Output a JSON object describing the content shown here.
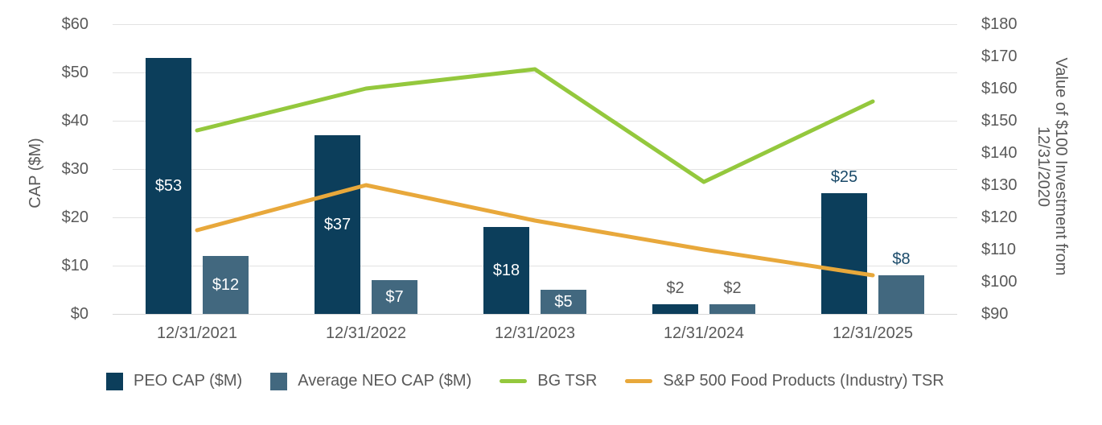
{
  "chart_data": {
    "type": "combo-bar-line",
    "title": "",
    "categories": [
      "12/31/2021",
      "12/31/2022",
      "12/31/2023",
      "12/31/2024",
      "12/31/2025"
    ],
    "bar_series": [
      {
        "name": "PEO CAP ($M)",
        "color": "#0c3e5b",
        "axis": "left",
        "values": [
          53,
          37,
          18,
          2,
          25
        ],
        "labels": [
          {
            "text": "$53",
            "placement": "inside",
            "color": "#ffffff"
          },
          {
            "text": "$37",
            "placement": "inside",
            "color": "#ffffff"
          },
          {
            "text": "$18",
            "placement": "inside",
            "color": "#ffffff"
          },
          {
            "text": "$2",
            "placement": "outside",
            "color": "#595959"
          },
          {
            "text": "$25",
            "placement": "outside",
            "color": "#1a4a69"
          }
        ]
      },
      {
        "name": "Average NEO CAP ($M)",
        "color": "#42687f",
        "axis": "left",
        "values": [
          12,
          7,
          5,
          2,
          8
        ],
        "labels": [
          {
            "text": "$12",
            "placement": "inside",
            "color": "#ffffff"
          },
          {
            "text": "$7",
            "placement": "inside",
            "color": "#ffffff"
          },
          {
            "text": "$5",
            "placement": "inside",
            "color": "#ffffff"
          },
          {
            "text": "$2",
            "placement": "outside",
            "color": "#595959"
          },
          {
            "text": "$8",
            "placement": "outside",
            "color": "#1a4a69"
          }
        ]
      }
    ],
    "line_series": [
      {
        "name": "BG TSR",
        "color": "#94c83d",
        "axis": "right",
        "values": [
          147,
          160,
          166,
          131,
          156
        ]
      },
      {
        "name": "S&P 500 Food Products (Industry) TSR",
        "color": "#e8a83b",
        "axis": "right",
        "values": [
          116,
          130,
          119,
          110,
          102
        ]
      }
    ],
    "left_axis": {
      "title": "CAP ($M)",
      "range": [
        0,
        60
      ],
      "tick_step": 10,
      "tick_labels": [
        "$0",
        "$10",
        "$20",
        "$30",
        "$40",
        "$50",
        "$60"
      ]
    },
    "right_axis": {
      "title": "Value of $100 Investment from 12/31/2020",
      "range": [
        90,
        180
      ],
      "tick_step": 10,
      "tick_labels": [
        "$90",
        "$100",
        "$110",
        "$120",
        "$130",
        "$140",
        "$150",
        "$160",
        "$170",
        "$180"
      ]
    },
    "legend": [
      {
        "label": "PEO CAP ($M)",
        "swatch": "square",
        "color": "#0c3e5b"
      },
      {
        "label": "Average NEO CAP ($M)",
        "swatch": "square",
        "color": "#42687f"
      },
      {
        "label": "BG TSR",
        "swatch": "line",
        "color": "#94c83d"
      },
      {
        "label": "S&P 500 Food Products (Industry) TSR",
        "swatch": "line",
        "color": "#e8a83b"
      }
    ],
    "grid": true,
    "legend_position": "bottom-left"
  },
  "colors": {
    "background": "#ffffff",
    "axis_text": "#595959",
    "gridline": "#e2e2e2"
  }
}
